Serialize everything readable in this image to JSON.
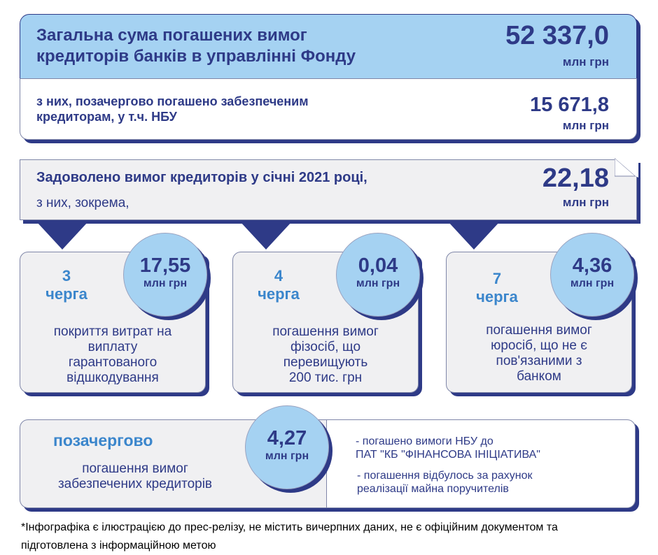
{
  "total": {
    "title_line1": "Загальна сума погашених вимог",
    "title_line2": "кредиторів банків в управлінні Фонду",
    "value": "52 337,0",
    "unit": "млн грн"
  },
  "secured": {
    "text_line1": "з них, позачергово погашено забезпеченим",
    "text_line2": "кредиторам, у т.ч. НБУ",
    "value": "15 671,8",
    "unit": "млн грн"
  },
  "january": {
    "title": "Задоволено вимог кредиторів у січні 2021 році,",
    "subtitle": "з них, зокрема,",
    "value": "22,18",
    "unit": "млн грн"
  },
  "queues": [
    {
      "number": "3",
      "word": "черга",
      "value": "17,55",
      "unit": "млн грн",
      "desc": [
        "покриття витрат на",
        "виплату",
        "гарантованого",
        "відшкодування"
      ]
    },
    {
      "number": "4",
      "word": "черга",
      "value": "0,04",
      "unit": "млн грн",
      "desc": [
        "погашення вимог",
        "фізосіб, що",
        "перевищують",
        " 200 тис. грн"
      ]
    },
    {
      "number": "7",
      "word": "черга",
      "value": "4,36",
      "unit": "млн грн",
      "desc": [
        "погашення вимог",
        "юросіб, що не є",
        "пов'язаними з",
        "банком"
      ]
    }
  ],
  "priority": {
    "title": "позачергово",
    "desc_line1": "погашення вимог",
    "desc_line2": "забезпечених кредиторів",
    "value": "4,27",
    "unit": "млн грн",
    "bullet1_line1": "- погашено вимоги НБУ до",
    "bullet1_line2": "ПАТ \"КБ \"ФІНАНСОВА ІНІЦІАТИВА\"",
    "bullet2_line1": "- погашення відбулось за рахунок",
    "bullet2_line2": "реалізації майна поручителів"
  },
  "footnote": {
    "line1": "*Інфографіка є ілюстрацією до прес-релізу, не містить вичерпних даних, не є офіційним документом та",
    "line2": "підготовлена з інформаційною метою"
  }
}
